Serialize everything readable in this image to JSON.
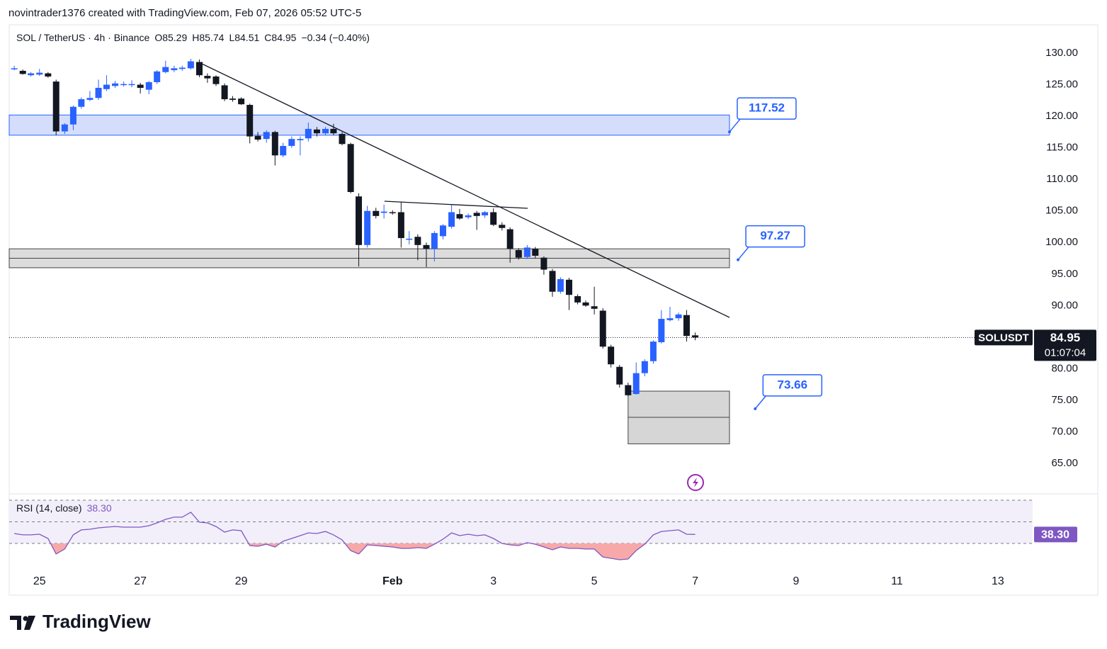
{
  "attribution": "novintrader1376 created with TradingView.com, Feb 07, 2026 05:52 UTC-5",
  "brand": "TradingView",
  "chart_data": [
    {
      "type": "candlestick",
      "symbol": "SOL / TetherUS · 4h · Binance",
      "ohlc": [
        {
          "label": "O",
          "value": 85.29
        },
        {
          "label": "H",
          "value": 85.74
        },
        {
          "label": "L",
          "value": 84.51
        },
        {
          "label": "C",
          "value": 84.95
        }
      ],
      "change": "−0.34 (−0.40%)",
      "up_color": "#2962ff",
      "down_color": "#131722",
      "x": [
        24.5,
        24.67,
        24.83,
        25,
        25.17,
        25.33,
        25.5,
        25.67,
        25.83,
        26,
        26.17,
        26.33,
        26.5,
        26.67,
        26.83,
        27,
        27.17,
        27.33,
        27.5,
        27.67,
        27.83,
        28,
        28.17,
        28.33,
        28.5,
        28.67,
        28.83,
        29,
        29.17,
        29.33,
        29.5,
        29.67,
        29.83,
        30,
        30.17,
        30.33,
        30.5,
        30.67,
        30.83,
        31,
        31.17,
        31.33,
        31.5,
        31.67,
        31.83,
        32,
        32.17,
        32.33,
        32.5,
        32.67,
        32.83,
        33,
        33.17,
        33.33,
        33.5,
        33.67,
        33.83,
        34,
        34.17,
        34.33,
        34.5,
        34.67,
        34.83,
        35,
        35.17,
        35.33,
        35.5,
        35.67,
        35.83,
        36,
        36.17,
        36.33,
        36.5,
        36.67,
        36.83,
        37,
        37.17,
        37.33,
        37.5,
        37.67,
        37.83,
        38
      ],
      "open": [
        127.5,
        127.2,
        126.5,
        126.6,
        126.8,
        125.5,
        117.6,
        118.7,
        121.5,
        122.6,
        122.9,
        124.3,
        124.8,
        125,
        125,
        125,
        124.2,
        125.4,
        127,
        127.3,
        127.5,
        127.6,
        128.6,
        126.4,
        126.3,
        124.9,
        122.8,
        122.8,
        121.8,
        116.9,
        116.4,
        117.5,
        113.8,
        115.3,
        116.2,
        116.5,
        117.9,
        117.3,
        118,
        117.2,
        115.6,
        107.3,
        99.6,
        105,
        104.7,
        104.8,
        104.8,
        100.5,
        100.9,
        99.6,
        99,
        101,
        102.5,
        104.5,
        104,
        104.7,
        104.3,
        104.8,
        102.8,
        102.1,
        98.8,
        97.7,
        99,
        97.6,
        95.5,
        92.2,
        94.1,
        91.5,
        90.5,
        89.9,
        89.2,
        83.5,
        80.3,
        77.4,
        76,
        79.3,
        81.2,
        84.2,
        87.7,
        88,
        88.5,
        85.29
      ],
      "high": [
        128,
        127.4,
        127,
        127.5,
        127,
        125.8,
        118.9,
        121.7,
        123,
        124,
        125.8,
        126.5,
        125.6,
        125.5,
        125.7,
        125.3,
        125.6,
        127.3,
        128.8,
        128,
        128,
        129.1,
        129,
        126.8,
        126.5,
        125.2,
        123.2,
        123,
        122,
        117.5,
        117.8,
        117.7,
        115.8,
        116.8,
        116.8,
        119,
        118.3,
        118.3,
        118.8,
        117.5,
        115.8,
        107.8,
        105.8,
        105.5,
        106,
        105.1,
        106.4,
        101.8,
        101.3,
        100,
        101.8,
        102.9,
        106,
        105.3,
        104.6,
        105,
        105,
        105.4,
        103.2,
        102.4,
        99.1,
        99.6,
        99.3,
        97.8,
        95.8,
        94.5,
        94.4,
        91.8,
        90.8,
        93,
        89.6,
        83.8,
        80.6,
        77.8,
        81,
        81.5,
        84.5,
        89.3,
        89.8,
        88.9,
        89.3,
        85.74
      ],
      "low": [
        127.3,
        126.6,
        126.3,
        126.4,
        126.1,
        117,
        117.2,
        117.8,
        121.2,
        122.4,
        122.6,
        124,
        124.5,
        124.7,
        124.6,
        123.6,
        123.5,
        125.1,
        126.8,
        127,
        127.2,
        127.4,
        126.2,
        125.3,
        124.8,
        122.4,
        122.3,
        121.8,
        115.7,
        116,
        115.8,
        112.2,
        113.5,
        115,
        113.8,
        116,
        116.8,
        117,
        117,
        115.4,
        107.8,
        96.2,
        99.2,
        103.8,
        103.8,
        104.4,
        99.2,
        99.7,
        97.2,
        96.1,
        97,
        100.5,
        102.2,
        103.6,
        103.7,
        102,
        103.9,
        102.6,
        101.9,
        96.8,
        97.3,
        97.4,
        97.5,
        94.9,
        91.4,
        91.9,
        89.3,
        90.2,
        89.8,
        88.6,
        83.2,
        80.2,
        77,
        75.7,
        75.9,
        78.8,
        80.8,
        84,
        87.5,
        87.6,
        84.3,
        84.51
      ],
      "close": [
        127.6,
        126.7,
        126.8,
        126.9,
        126.3,
        117.6,
        118.7,
        121.5,
        122.7,
        122.9,
        124.5,
        125,
        125.2,
        125.1,
        125.1,
        124.5,
        125.4,
        127.1,
        127.8,
        127.6,
        127.7,
        128.7,
        126.5,
        126,
        125.1,
        122.7,
        122.6,
        121.9,
        116.8,
        116.3,
        117.5,
        113.8,
        115.3,
        116.4,
        116.4,
        118,
        117.3,
        118,
        117.3,
        115.6,
        108,
        99.6,
        105,
        104.2,
        104.9,
        104.7,
        100.7,
        100.6,
        99.6,
        99,
        101.5,
        102.7,
        104.8,
        103.8,
        104.3,
        104.2,
        104.8,
        102.8,
        102.3,
        99,
        97.6,
        99.2,
        97.9,
        95.7,
        92.2,
        94.2,
        91.7,
        90.5,
        90,
        89.5,
        83.5,
        80.7,
        77.5,
        75.8,
        79.3,
        81.2,
        84.3,
        87.9,
        88,
        88.6,
        85.2,
        84.95
      ],
      "xlim": [
        24.4,
        44.69
      ],
      "ylim": [
        60.18,
        134.49
      ],
      "yticks": [
        {
          "value": 130,
          "label": "130.00"
        },
        {
          "value": 125,
          "label": "125.00"
        },
        {
          "value": 120,
          "label": "120.00"
        },
        {
          "value": 115,
          "label": "115.00"
        },
        {
          "value": 110,
          "label": "110.00"
        },
        {
          "value": 105,
          "label": "105.00"
        },
        {
          "value": 100,
          "label": "100.00"
        },
        {
          "value": 95,
          "label": "95.00"
        },
        {
          "value": 90,
          "label": "90.00"
        },
        {
          "value": 85,
          "label": "85.00"
        },
        {
          "value": 80,
          "label": "80.00"
        },
        {
          "value": 75,
          "label": "75.00"
        },
        {
          "value": 70,
          "label": "70.00"
        },
        {
          "value": 65,
          "label": "65.00"
        }
      ],
      "grid": false,
      "zones": [
        {
          "x": [
            24.4,
            38.68
          ],
          "y": [
            117,
            120.2
          ],
          "color": "#d4defc",
          "stroke": "#2962ff"
        },
        {
          "x": [
            24.4,
            38.68
          ],
          "y": [
            96,
            99
          ],
          "mid": 97.5,
          "color": "#dcdcdc",
          "stroke": "#444444"
        },
        {
          "x": [
            36.67,
            38.68
          ],
          "y": [
            68.1,
            76.45
          ],
          "mid": 72.3,
          "color": "#d6d6d6",
          "stroke": "#444444"
        }
      ],
      "trendlines": [
        {
          "x": [
            28.19,
            38.68
          ],
          "y": [
            128.43,
            88.13
          ]
        },
        {
          "x": [
            31.84,
            34.68
          ],
          "y": [
            106.54,
            105.42
          ]
        }
      ],
      "price_labels": [
        {
          "value": 117.52,
          "x": 38.68
        },
        {
          "value": 97.27,
          "x": 38.85
        },
        {
          "value": 73.66,
          "x": 39.19
        }
      ],
      "last_price": {
        "label": "SOLUSDT",
        "value": 84.95,
        "countdown": "01:07:04"
      }
    },
    {
      "type": "line",
      "title": "RSI (14, close)",
      "color": "#7e57c2",
      "band_color": "#f2effa",
      "oversold_color": "#f7a9a9",
      "x": [
        24.5,
        24.67,
        24.83,
        25,
        25.17,
        25.33,
        25.5,
        25.67,
        25.83,
        26,
        26.17,
        26.33,
        26.5,
        26.67,
        26.83,
        27,
        27.17,
        27.33,
        27.5,
        27.67,
        27.83,
        28,
        28.17,
        28.33,
        28.5,
        28.67,
        28.83,
        29,
        29.17,
        29.33,
        29.5,
        29.67,
        29.83,
        30,
        30.17,
        30.33,
        30.5,
        30.67,
        30.83,
        31,
        31.17,
        31.33,
        31.5,
        31.67,
        31.83,
        32,
        32.17,
        32.33,
        32.5,
        32.67,
        32.83,
        33,
        33.17,
        33.33,
        33.5,
        33.67,
        33.83,
        34,
        34.17,
        34.33,
        34.5,
        34.67,
        34.83,
        35,
        35.17,
        35.33,
        35.5,
        35.67,
        35.83,
        36,
        36.17,
        36.33,
        36.5,
        36.67,
        36.83,
        37,
        37.17,
        37.33,
        37.5,
        37.67,
        37.83,
        38
      ],
      "values": [
        39.2,
        37.9,
        37.9,
        38.5,
        34.6,
        20.2,
        24.8,
        37.9,
        42.5,
        43.1,
        44.4,
        45.1,
        45.7,
        45.1,
        45.1,
        45.1,
        46.4,
        49.0,
        52.3,
        54.3,
        54.3,
        58.9,
        49.7,
        49.0,
        45.7,
        40.5,
        42.5,
        41.8,
        28.0,
        27.4,
        29.3,
        26.7,
        32.0,
        34.6,
        37.2,
        39.8,
        39.2,
        41.1,
        37.9,
        33.3,
        23.4,
        20.2,
        28.7,
        28.0,
        27.4,
        26.7,
        25.4,
        25.4,
        26.1,
        25.4,
        29.3,
        33.9,
        39.8,
        37.2,
        38.5,
        37.2,
        37.9,
        34.6,
        30.0,
        28.7,
        28.0,
        30.7,
        29.3,
        26.7,
        24.1,
        26.7,
        25.4,
        25.4,
        24.8,
        24.8,
        17.5,
        16.2,
        14.9,
        15.6,
        23.4,
        29.3,
        37.9,
        41.1,
        41.8,
        42.5,
        38.5,
        38.3
      ],
      "current": {
        "value": 38.3,
        "label": "38.30"
      },
      "levels": [
        70,
        50,
        30
      ],
      "xlim": [
        24.4,
        44.69
      ],
      "ylim": [
        5.08,
        75.9
      ],
      "xticks": [
        25,
        27,
        29,
        {
          "value": 32,
          "label": "Feb"
        },
        {
          "value": 34,
          "label": "3"
        },
        {
          "value": 36,
          "label": "5"
        },
        {
          "value": 38,
          "label": "7"
        },
        {
          "value": 40,
          "label": "9"
        },
        {
          "value": 42,
          "label": "11"
        },
        {
          "value": 44,
          "label": "13"
        }
      ]
    }
  ]
}
